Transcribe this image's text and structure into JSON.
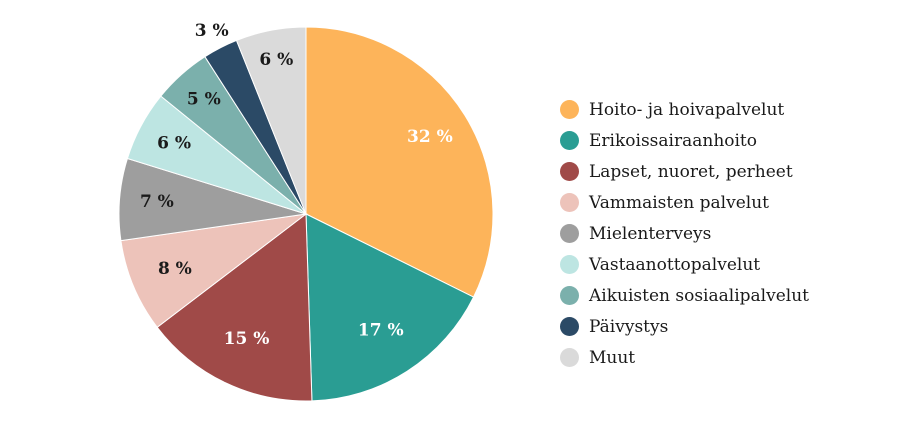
{
  "chart_data": {
    "type": "pie",
    "title": "",
    "legend_position": "right",
    "slices": [
      {
        "label": "Hoito- ja hoivapalvelut",
        "value": 32,
        "value_label": "32 %",
        "color": "#FDB45A",
        "label_color": "#ffffff"
      },
      {
        "label": "Erikoissairaanhoito",
        "value": 17,
        "value_label": "17 %",
        "color": "#2A9D93",
        "label_color": "#ffffff"
      },
      {
        "label": "Lapset, nuoret, perheet",
        "value": 15,
        "value_label": "15 %",
        "color": "#A04A48",
        "label_color": "#ffffff"
      },
      {
        "label": "Vammaisten palvelut",
        "value": 8,
        "value_label": "8 %",
        "color": "#EDC3BA",
        "label_color": "#1a1a1a"
      },
      {
        "label": "Mielenterveys",
        "value": 7,
        "value_label": "7 %",
        "color": "#9E9E9E",
        "label_color": "#1a1a1a"
      },
      {
        "label": "Vastaanottopalvelut",
        "value": 6,
        "value_label": "6 %",
        "color": "#BDE5E2",
        "label_color": "#1a1a1a"
      },
      {
        "label": "Aikuisten sosiaalipalvelut",
        "value": 5,
        "value_label": "5 %",
        "color": "#7BB0AC",
        "label_color": "#1a1a1a"
      },
      {
        "label": "Päivystys",
        "value": 3,
        "value_label": "3 %",
        "color": "#2B4A66",
        "label_color": "#1a1a1a"
      },
      {
        "label": "Muut",
        "value": 6,
        "value_label": "6 %",
        "color": "#DADADA",
        "label_color": "#1a1a1a"
      }
    ]
  }
}
